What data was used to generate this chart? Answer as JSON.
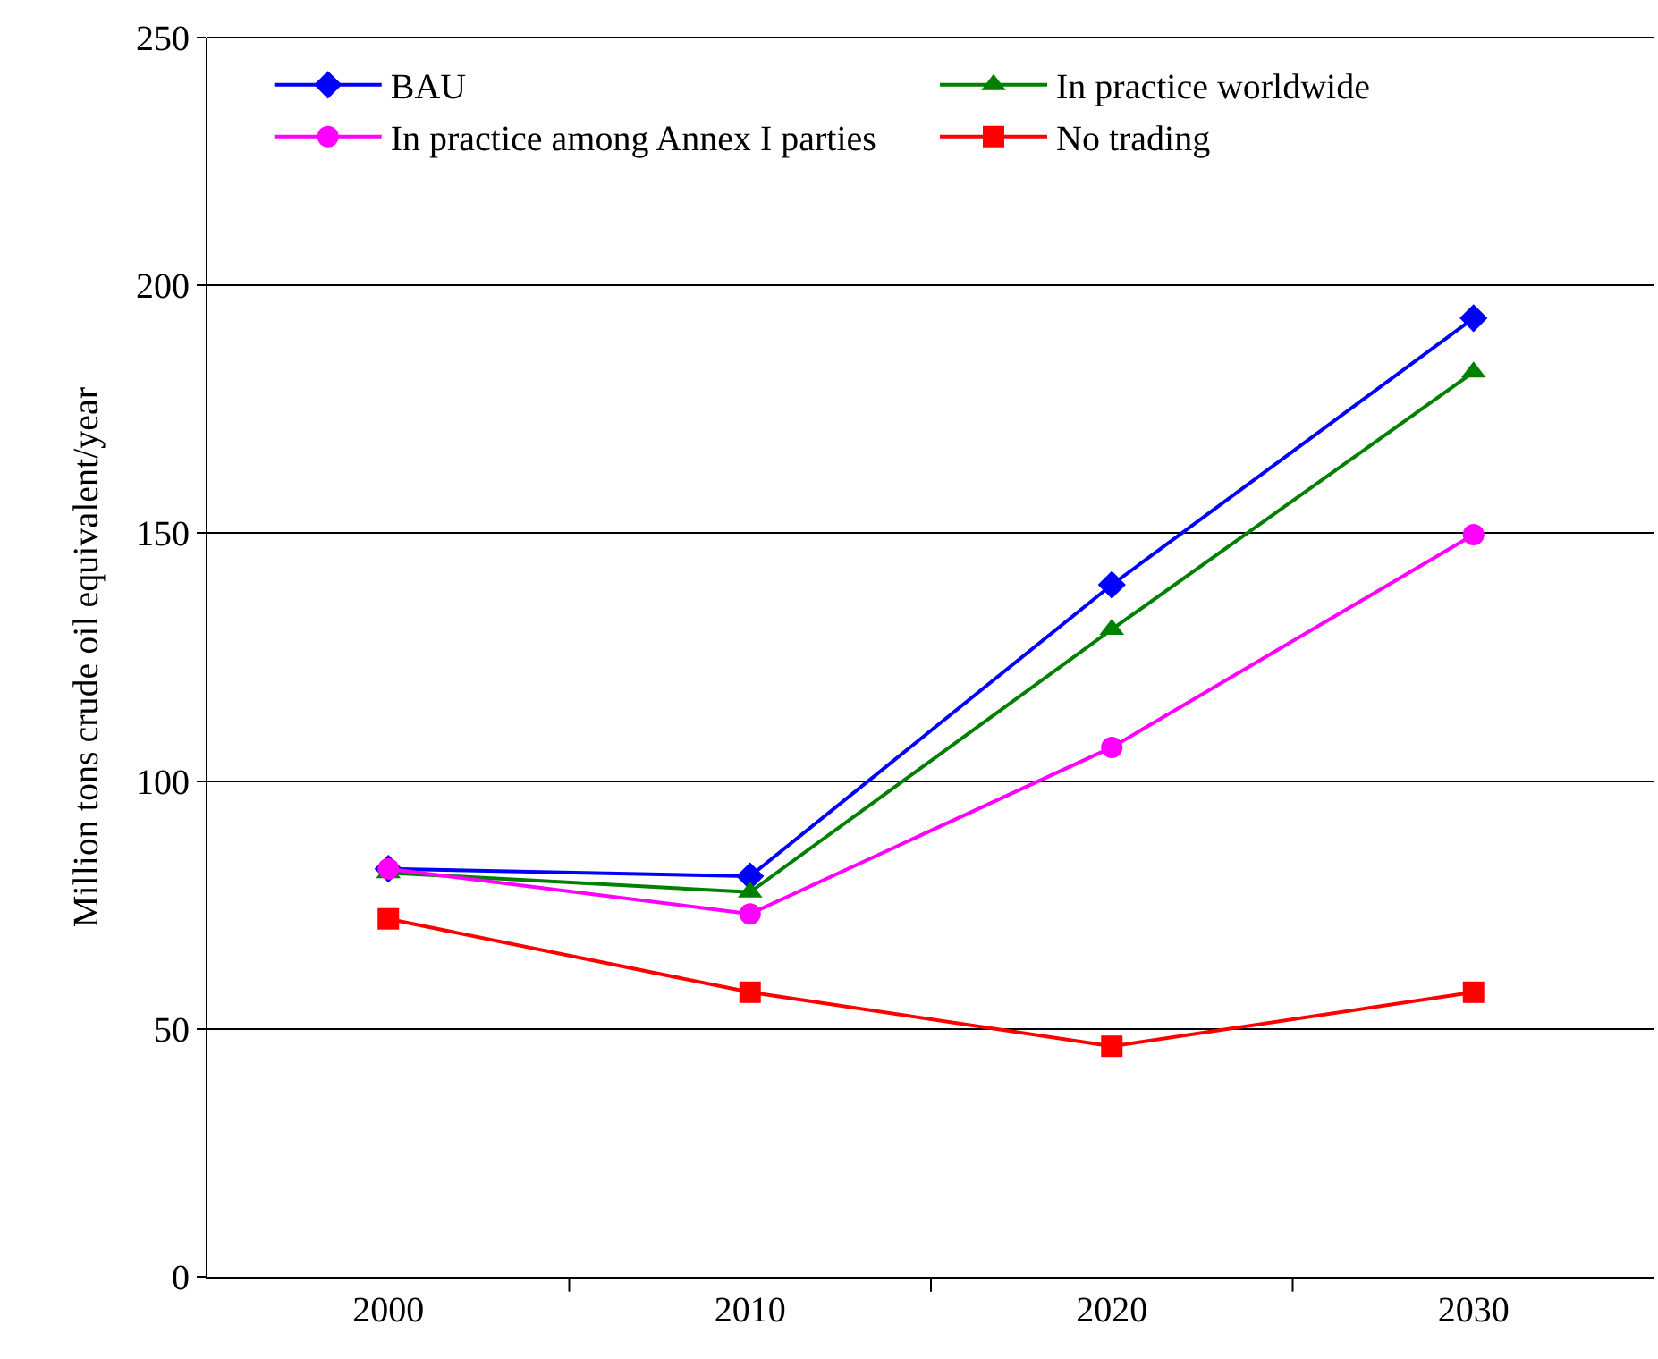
{
  "chart_data": {
    "type": "line",
    "ylabel": "Million tons crude oil equivalent/year",
    "categories": [
      "2000",
      "2010",
      "2020",
      "2030"
    ],
    "series": [
      {
        "name": "BAU",
        "color": "#0000ff",
        "marker": "diamond",
        "values": [
          82.3,
          80.8,
          139.6,
          193.4
        ]
      },
      {
        "name": "In practice worldwide",
        "color": "#008000",
        "marker": "triangle",
        "values": [
          81.5,
          77.6,
          130.6,
          182.5
        ]
      },
      {
        "name": "In practice among Annex I parties",
        "color": "#ff00ff",
        "marker": "circle",
        "values": [
          82.3,
          73.2,
          106.8,
          149.7
        ]
      },
      {
        "name": "No trading",
        "color": "#ff0000",
        "marker": "square",
        "values": [
          72.2,
          57.4,
          46.5,
          57.4
        ]
      }
    ],
    "ylim": [
      0,
      250
    ],
    "yticks": [
      0,
      50,
      100,
      150,
      200,
      250
    ],
    "grid": "y",
    "legend": "top",
    "line_style": "solid"
  }
}
